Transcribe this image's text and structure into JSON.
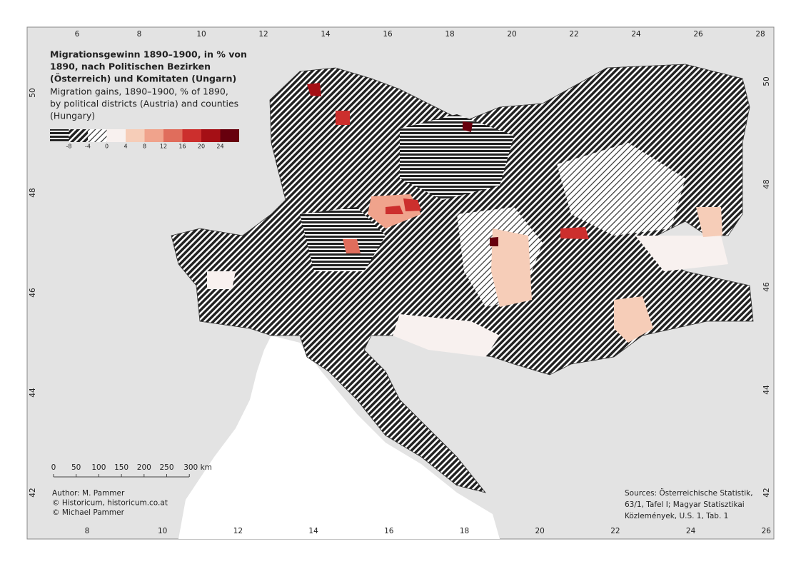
{
  "title": [
    "Migrationsgewinn 1890–1900, in % von",
    "1890, nach Politischen Bezirken",
    "(Österreich) und Komitaten (Ungarn)"
  ],
  "subtitle": [
    "Migration gains, 1890–1900, % of 1890,",
    "by political districts (Austria) and counties",
    "(Hungary)"
  ],
  "legend": {
    "ticks": [
      -8,
      -4,
      0,
      4,
      8,
      12,
      16,
      20,
      24
    ]
  },
  "graticule": {
    "top": [
      6,
      8,
      10,
      12,
      14,
      16,
      18,
      20,
      22,
      24,
      26,
      28
    ],
    "bottom": [
      8,
      10,
      12,
      14,
      16,
      18,
      20,
      22,
      24,
      26
    ],
    "left": [
      50,
      48,
      46,
      44,
      42
    ],
    "right": [
      50,
      48,
      46,
      44,
      42
    ]
  },
  "scale_bar": {
    "labels": [
      "0",
      "50",
      "100",
      "150",
      "200",
      "250",
      "300 km"
    ]
  },
  "credits": [
    "Author: M. Pammer",
    "© Historicum, historicum.co.at",
    "© Michael Pammer"
  ],
  "sources": [
    "Sources: Österreichische Statistik,",
    "63/1, Tafel I; Magyar Statisztikai",
    "Közlemények, U.S. 1, Tab. 1"
  ]
}
